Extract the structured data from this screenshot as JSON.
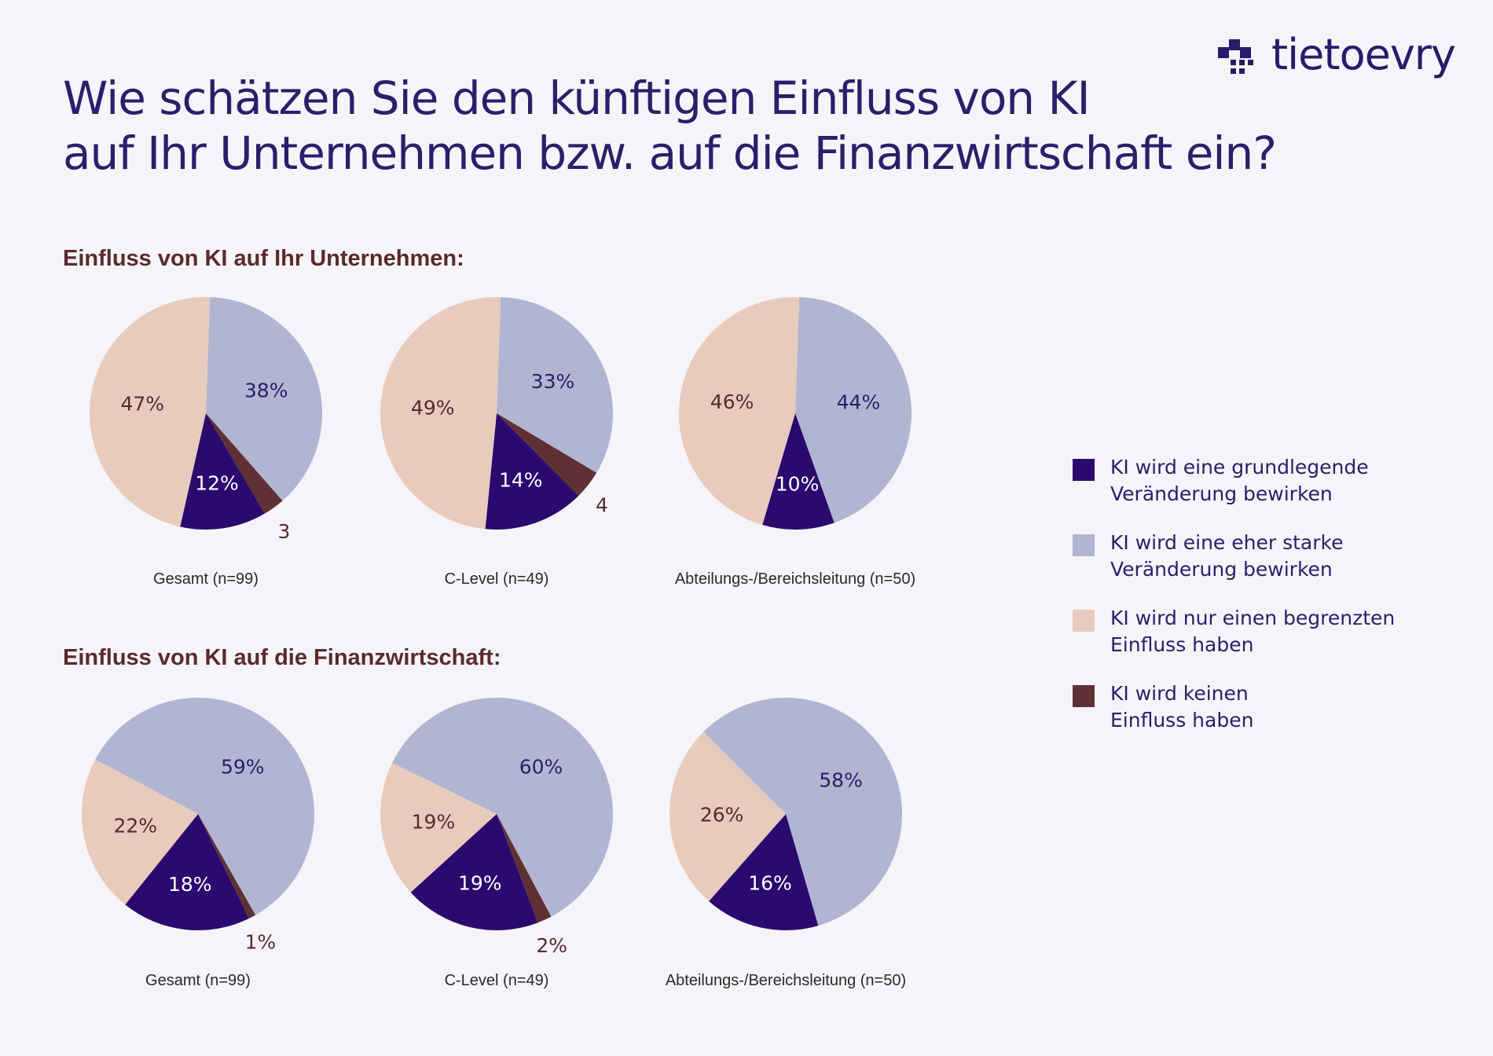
{
  "brand": {
    "name": "tietoevry",
    "color": "#2a1a6b"
  },
  "title_lines": [
    "Wie schätzen Sie den künftigen Einfluss von KI",
    "auf Ihr Unternehmen bzw. auf die Finanzwirtschaft ein?"
  ],
  "legend": [
    {
      "label": "KI wird eine grundlegende\nVeränderung bewirken",
      "color": "#2a0a6e"
    },
    {
      "label": "KI wird eine eher starke\nVeränderung bewirken",
      "color": "#b1b5d1"
    },
    {
      "label": "KI wird nur einen begrenzten\nEinfluss haben",
      "color": "#e8cbbd"
    },
    {
      "label": "KI wird keinen\nEinfluss haben",
      "color": "#5f3034"
    }
  ],
  "sections": [
    {
      "title": "Einfluss von KI auf Ihr Unternehmen:"
    },
    {
      "title": "Einfluss von KI auf die Finanzwirtschaft:"
    }
  ],
  "chart_data": [
    {
      "type": "pie",
      "title": "Einfluss von KI auf Ihr Unternehmen:",
      "series_names": [
        "KI wird eine grundlegende Veränderung bewirken",
        "KI wird eine eher starke Veränderung bewirken",
        "KI wird nur einen begrenzten Einfluss haben",
        "KI wird keinen Einfluss haben"
      ],
      "groups": [
        {
          "caption": "Gesamt (n=99)",
          "values": [
            12,
            38,
            47,
            3
          ],
          "labels": [
            "12%",
            "38%",
            "47%",
            "3"
          ]
        },
        {
          "caption": "C-Level (n=49)",
          "values": [
            14,
            33,
            49,
            4
          ],
          "labels": [
            "14%",
            "33%",
            "49%",
            "4"
          ]
        },
        {
          "caption": "Abteilungs-/Bereichsleitung (n=50)",
          "values": [
            10,
            44,
            46,
            0
          ],
          "labels": [
            "10%",
            "44%",
            "46%",
            ""
          ]
        }
      ]
    },
    {
      "type": "pie",
      "title": "Einfluss von KI auf die Finanzwirtschaft:",
      "series_names": [
        "KI wird eine grundlegende Veränderung bewirken",
        "KI wird eine eher starke Veränderung bewirken",
        "KI wird nur einen begrenzten Einfluss haben",
        "KI wird keinen Einfluss haben"
      ],
      "groups": [
        {
          "caption": "Gesamt (n=99)",
          "values": [
            18,
            59,
            22,
            1
          ],
          "labels": [
            "18%",
            "59%",
            "22%",
            "1%"
          ]
        },
        {
          "caption": "C-Level (n=49)",
          "values": [
            19,
            60,
            19,
            2
          ],
          "labels": [
            "19%",
            "60%",
            "19%",
            "2%"
          ]
        },
        {
          "caption": "Abteilungs-/Bereichsleitung (n=50)",
          "values": [
            16,
            58,
            26,
            0
          ],
          "labels": [
            "16%",
            "58%",
            "26%",
            ""
          ]
        }
      ]
    }
  ]
}
